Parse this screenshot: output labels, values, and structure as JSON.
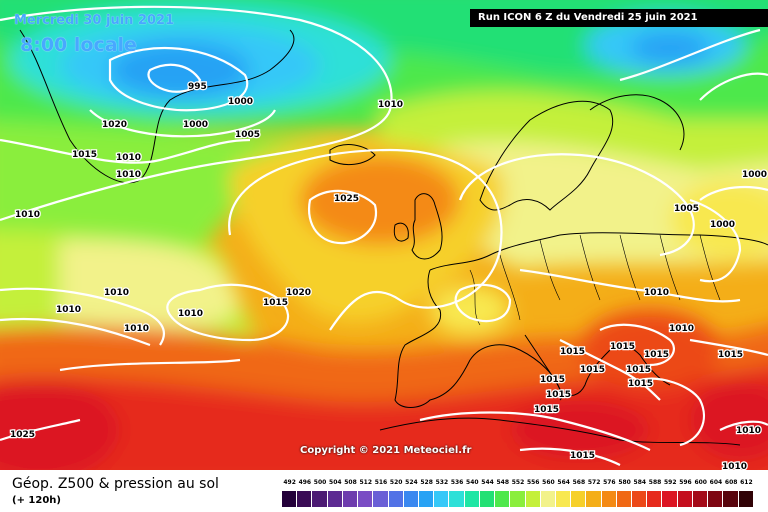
{
  "header": {
    "date_text": "Mercredi 30 juin 2021",
    "time_text": "8:00 locale",
    "run_text": "Run ICON 6 Z du Vendredi 25 juin 2021"
  },
  "map": {
    "copyright": "Copyright © 2021 Meteociel.fr",
    "isobar_labels": [
      "995",
      "1000",
      "1000",
      "1005",
      "1010",
      "1020",
      "1015",
      "1010",
      "1010",
      "1010",
      "1025",
      "1020",
      "1015",
      "1010",
      "1010",
      "1010",
      "1010",
      "1025",
      "1005",
      "1000",
      "1000",
      "1010",
      "1010",
      "1015",
      "1015",
      "1015",
      "1015",
      "1015",
      "1015",
      "1015",
      "1015",
      "1015",
      "1015",
      "1015",
      "1010",
      "1010"
    ]
  },
  "legend": {
    "title": "Géop. Z500 & pression au sol",
    "subtitle": "(+ 120h)",
    "scale": [
      {
        "value": "492",
        "color": "#24003a"
      },
      {
        "value": "496",
        "color": "#3a0b55"
      },
      {
        "value": "500",
        "color": "#4c1a73"
      },
      {
        "value": "504",
        "color": "#5d2a92"
      },
      {
        "value": "508",
        "color": "#6e3cae"
      },
      {
        "value": "512",
        "color": "#7a4dc4"
      },
      {
        "value": "516",
        "color": "#6a5fd6"
      },
      {
        "value": "520",
        "color": "#5272e6"
      },
      {
        "value": "524",
        "color": "#3a88f0"
      },
      {
        "value": "528",
        "color": "#28a2f4"
      },
      {
        "value": "532",
        "color": "#36c8f8"
      },
      {
        "value": "536",
        "color": "#2ee0d8"
      },
      {
        "value": "540",
        "color": "#1ee6a4"
      },
      {
        "value": "544",
        "color": "#22e074"
      },
      {
        "value": "548",
        "color": "#4ee84c"
      },
      {
        "value": "552",
        "color": "#8aee3c"
      },
      {
        "value": "556",
        "color": "#c4f03a"
      },
      {
        "value": "560",
        "color": "#f2f28a"
      },
      {
        "value": "564",
        "color": "#f8e850"
      },
      {
        "value": "568",
        "color": "#f6d02a"
      },
      {
        "value": "572",
        "color": "#f4ae18"
      },
      {
        "value": "576",
        "color": "#f48a14"
      },
      {
        "value": "580",
        "color": "#f06814"
      },
      {
        "value": "584",
        "color": "#ec4818"
      },
      {
        "value": "588",
        "color": "#e62a1c"
      },
      {
        "value": "592",
        "color": "#dc1422"
      },
      {
        "value": "596",
        "color": "#c40e1e"
      },
      {
        "value": "600",
        "color": "#a40a18"
      },
      {
        "value": "604",
        "color": "#7e0612"
      },
      {
        "value": "608",
        "color": "#58040c"
      },
      {
        "value": "612",
        "color": "#300206"
      }
    ]
  }
}
